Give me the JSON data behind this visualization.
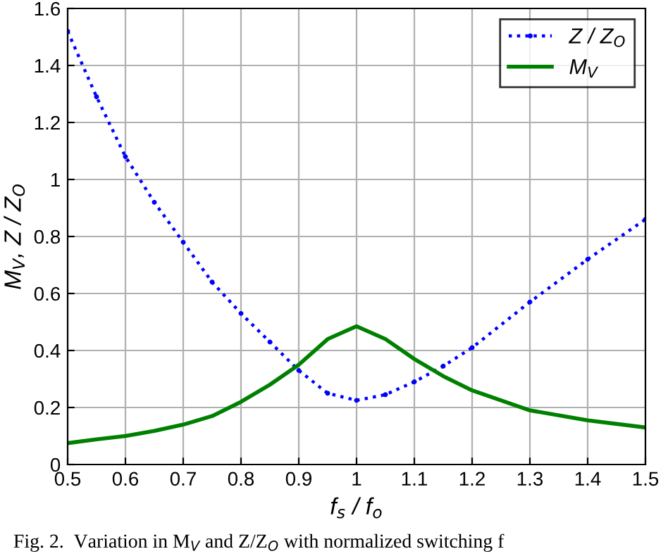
{
  "chart_data": {
    "type": "line",
    "xlabel": "f$_{s}$ / f$_{o}$",
    "ylabel": "M$_{V}$, Z / Z$_{O}$",
    "x": [
      0.5,
      0.55,
      0.6,
      0.65,
      0.7,
      0.75,
      0.8,
      0.85,
      0.9,
      0.95,
      1.0,
      1.05,
      1.1,
      1.15,
      1.2,
      1.3,
      1.4,
      1.5
    ],
    "series": [
      {
        "name": "Z / Z$_{O}$",
        "color": "#0000ff",
        "line_style": "dotted",
        "marker": "circle",
        "values": [
          1.52,
          1.29,
          1.08,
          0.92,
          0.78,
          0.64,
          0.53,
          0.43,
          0.33,
          0.25,
          0.225,
          0.245,
          0.29,
          0.345,
          0.41,
          0.57,
          0.72,
          0.86
        ]
      },
      {
        "name": "M$_{V}$",
        "color": "#008000",
        "line_style": "solid",
        "marker": "none",
        "values": [
          0.075,
          0.088,
          0.1,
          0.118,
          0.14,
          0.17,
          0.22,
          0.28,
          0.35,
          0.44,
          0.485,
          0.44,
          0.37,
          0.31,
          0.26,
          0.19,
          0.155,
          0.13
        ]
      }
    ],
    "xlim": [
      0.5,
      1.5
    ],
    "ylim": [
      0,
      1.6
    ],
    "xticks": [
      0.5,
      0.6,
      0.7,
      0.8,
      0.9,
      1,
      1.1,
      1.2,
      1.3,
      1.4,
      1.5
    ],
    "yticks": [
      0,
      0.2,
      0.4,
      0.6,
      0.8,
      1,
      1.2,
      1.4,
      1.6
    ],
    "grid": true,
    "legend": "top right",
    "annotations": [
      "Fig. 2.  Variation in M$_{V}$ and Z/Z$_{O}$ with normalized switching f"
    ]
  }
}
